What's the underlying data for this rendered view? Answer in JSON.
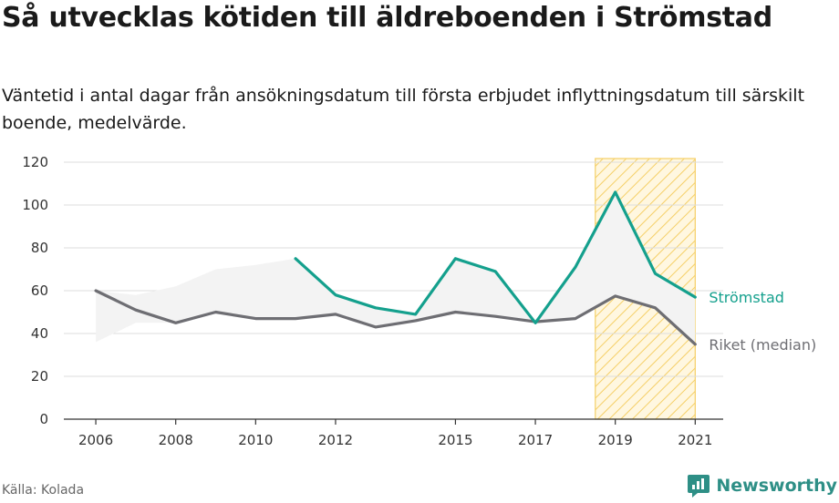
{
  "title": "Så utvecklas kötiden till äldreboenden i Strömstad",
  "subtitle": "Väntetid i antal dagar från ansökningsdatum till första erbjudet inflyttningsdatum till särskilt boende, medelvärde.",
  "source": "Källa: Kolada",
  "brand": {
    "name": "Newsworthy",
    "icon": "newsworthy-logo-icon",
    "color": "#2e8f86"
  },
  "chart_data": {
    "type": "line",
    "ylim": [
      0,
      120
    ],
    "yticks": [
      0,
      20,
      40,
      60,
      80,
      100,
      120
    ],
    "xticks": [
      "2006",
      "2008",
      "2010",
      "2012",
      "2015",
      "2017",
      "2019",
      "2021"
    ],
    "x": [
      2006,
      2007,
      2008,
      2009,
      2010,
      2011,
      2012,
      2013,
      2014,
      2015,
      2016,
      2017,
      2018,
      2019,
      2020,
      2021
    ],
    "grid": true,
    "highlight_range": [
      2018.5,
      2021
    ],
    "series": [
      {
        "name": "Strömstad",
        "color": "#14a08d",
        "values": [
          null,
          null,
          null,
          null,
          null,
          75,
          58,
          52,
          49,
          75,
          69,
          45,
          71,
          106,
          68,
          57
        ]
      },
      {
        "name": "Riket (median)",
        "color": "#6e6e73",
        "values": [
          60,
          51,
          45,
          50,
          47,
          47,
          49,
          43,
          46,
          50,
          48,
          45.5,
          47,
          57.5,
          52,
          35
        ]
      }
    ],
    "band": {
      "color": "#f3f3f3",
      "upper": [
        60,
        58,
        62,
        70,
        72,
        75,
        58,
        52,
        49,
        75,
        69,
        45,
        71,
        106,
        68,
        57
      ],
      "lower": [
        36,
        45,
        45,
        50,
        47,
        47,
        49,
        43,
        46,
        50,
        48,
        45,
        47,
        57,
        52,
        35
      ]
    }
  }
}
